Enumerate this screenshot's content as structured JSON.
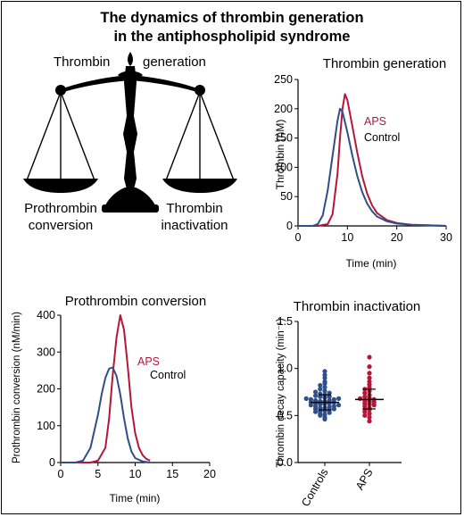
{
  "figure": {
    "title_line1": "The dynamics of thrombin generation",
    "title_line2": "in the antiphospholipid syndrome"
  },
  "balance": {
    "top_left": "Thrombin",
    "top_right": "generation",
    "left_line1": "Prothrombin",
    "left_line2": "conversion",
    "right_line1": "Thrombin",
    "right_line2": "inactivation",
    "icon": "balance-scale-icon"
  },
  "colors": {
    "aps": "#b5173a",
    "control": "#2e4f8a"
  },
  "chart_data": [
    {
      "id": "tg",
      "type": "line",
      "title": "Thrombin generation",
      "xlabel": "Time (min)",
      "ylabel": "Thrombin (nM)",
      "xlim": [
        0,
        30
      ],
      "ylim": [
        0,
        250
      ],
      "xticks": [
        0,
        10,
        20,
        30
      ],
      "yticks": [
        0,
        50,
        100,
        150,
        200,
        250
      ],
      "series": [
        {
          "name": "APS",
          "color": "#b5173a",
          "x": [
            0,
            4,
            6,
            7,
            8,
            8.5,
            9,
            9.5,
            10,
            11,
            12,
            13,
            14,
            15,
            16,
            18,
            20,
            23,
            26,
            30
          ],
          "y": [
            0,
            0,
            3,
            20,
            90,
            150,
            200,
            225,
            215,
            170,
            125,
            85,
            55,
            35,
            22,
            10,
            5,
            2,
            1,
            0
          ]
        },
        {
          "name": "Control",
          "color": "#2e4f8a",
          "x": [
            0,
            3,
            4,
            5,
            6,
            7,
            8,
            8.5,
            9,
            10,
            11,
            12,
            13,
            14,
            15,
            16,
            18,
            20,
            23,
            26,
            30
          ],
          "y": [
            0,
            0,
            3,
            18,
            60,
            120,
            180,
            200,
            195,
            160,
            120,
            85,
            58,
            38,
            25,
            16,
            8,
            4,
            2,
            1,
            0
          ]
        }
      ]
    },
    {
      "id": "pc",
      "type": "line",
      "title": "Prothrombin conversion",
      "xlabel": "Time (min)",
      "ylabel": "Prothrombin conversion (nM/min)",
      "xlim": [
        0,
        20
      ],
      "ylim": [
        0,
        400
      ],
      "xticks": [
        0,
        5,
        10,
        15,
        20
      ],
      "yticks": [
        0,
        100,
        200,
        300,
        400
      ],
      "series": [
        {
          "name": "APS",
          "color": "#b5173a",
          "x": [
            0,
            4,
            5,
            6,
            6.5,
            7,
            7.5,
            8,
            8.5,
            9,
            9.5,
            10,
            10.5,
            11,
            11.5,
            12
          ],
          "y": [
            0,
            0,
            5,
            40,
            120,
            240,
            340,
            400,
            360,
            260,
            150,
            80,
            40,
            20,
            10,
            5
          ]
        },
        {
          "name": "Control",
          "color": "#2e4f8a",
          "x": [
            0,
            2,
            3,
            4,
            5,
            5.5,
            6,
            6.5,
            7,
            7.5,
            8,
            8.5,
            9,
            9.5,
            10,
            11,
            12
          ],
          "y": [
            0,
            0,
            5,
            40,
            130,
            185,
            230,
            255,
            258,
            235,
            185,
            120,
            65,
            30,
            12,
            3,
            0
          ]
        }
      ]
    },
    {
      "id": "ti",
      "type": "scatter",
      "title": "Thrombin inactivation",
      "ylabel": "Thrombin decay capacity (min⁻¹)",
      "ylim": [
        0,
        1.5
      ],
      "yticks": [
        0.0,
        0.5,
        1.0,
        1.5
      ],
      "categories": [
        "Controls",
        "APS"
      ],
      "series": [
        {
          "name": "Controls",
          "color": "#2e4f8a",
          "mean": 0.64,
          "sd_low": 0.56,
          "sd_high": 0.72,
          "values": [
            0.46,
            0.48,
            0.5,
            0.51,
            0.52,
            0.53,
            0.54,
            0.55,
            0.55,
            0.56,
            0.57,
            0.57,
            0.58,
            0.58,
            0.59,
            0.6,
            0.6,
            0.61,
            0.61,
            0.62,
            0.62,
            0.63,
            0.63,
            0.64,
            0.64,
            0.65,
            0.65,
            0.66,
            0.66,
            0.67,
            0.67,
            0.68,
            0.68,
            0.69,
            0.7,
            0.7,
            0.71,
            0.72,
            0.73,
            0.74,
            0.75,
            0.76,
            0.78,
            0.8,
            0.82,
            0.84,
            0.86,
            0.9,
            0.93,
            0.97
          ]
        },
        {
          "name": "APS",
          "color": "#b5173a",
          "mean": 0.67,
          "sd_low": 0.57,
          "sd_high": 0.78,
          "values": [
            0.44,
            0.48,
            0.5,
            0.52,
            0.54,
            0.56,
            0.57,
            0.58,
            0.6,
            0.61,
            0.62,
            0.63,
            0.64,
            0.65,
            0.66,
            0.67,
            0.68,
            0.69,
            0.7,
            0.72,
            0.74,
            0.76,
            0.78,
            0.8,
            0.83,
            0.86,
            0.9,
            0.95,
            1.02,
            1.12
          ]
        }
      ]
    }
  ]
}
